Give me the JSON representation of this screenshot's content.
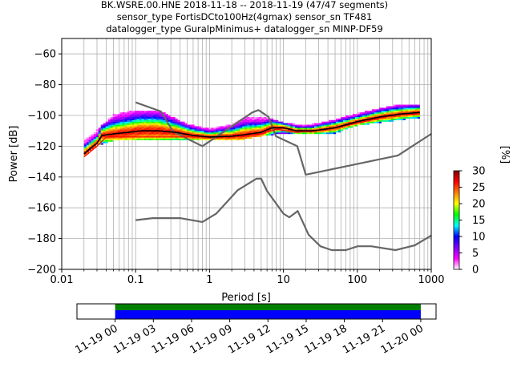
{
  "chart_data": [
    {
      "type": "heatmap",
      "title_lines": [
        "BK.WSRE.00.HNE   2018-11-18 -- 2018-11-19  (47/47 segments)",
        "sensor_type FortisDCto100Hz(4gmax) sensor_sn TF481",
        "datalogger_type GuralpMinimus+ datalogger_sn MINP-DF59"
      ],
      "xlabel": "Period [s]",
      "ylabel": "Power [dB]",
      "x_scale": "log",
      "xlim": [
        0.01,
        1000
      ],
      "ylim": [
        -200,
        -50
      ],
      "x_ticks": [
        0.01,
        0.1,
        1,
        10,
        100,
        1000
      ],
      "x_tick_labels": [
        "0.01",
        "0.1",
        "1",
        "10",
        "100",
        "1000"
      ],
      "y_ticks": [
        -200,
        -180,
        -160,
        -140,
        -120,
        -100,
        -80,
        -60
      ],
      "y_tick_labels": [
        "−200",
        "−180",
        "−160",
        "−140",
        "−120",
        "−100",
        "−80",
        "−60"
      ],
      "grid": true,
      "colorbar": {
        "label": "[%]",
        "range": [
          0,
          30
        ],
        "ticks": [
          0,
          5,
          10,
          15,
          20,
          25,
          30
        ],
        "tick_labels": [
          "0",
          "5",
          "10",
          "15",
          "20",
          "25",
          "30"
        ],
        "colormap": [
          "#ffffff",
          "#ff00ff",
          "#7f00ff",
          "#0000ff",
          "#00ffff",
          "#00ff00",
          "#ffff00",
          "#ff8000",
          "#ff0000",
          "#800000"
        ]
      },
      "reference_curves": {
        "color": "#666666",
        "nhnm": [
          {
            "period": 0.1,
            "db": -91.5
          },
          {
            "period": 0.22,
            "db": -97.4
          },
          {
            "period": 0.32,
            "db": -110.5
          },
          {
            "period": 0.8,
            "db": -120
          },
          {
            "period": 3.8,
            "db": -98
          },
          {
            "period": 4.6,
            "db": -96.5
          },
          {
            "period": 6.3,
            "db": -101
          },
          {
            "period": 7.9,
            "db": -113.5
          },
          {
            "period": 15.4,
            "db": -120
          },
          {
            "period": 20,
            "db": -138.5
          },
          {
            "period": 354.8,
            "db": -126
          },
          {
            "period": 1000,
            "db": -112
          }
        ],
        "nlnm": [
          {
            "period": 0.1,
            "db": -168
          },
          {
            "period": 0.17,
            "db": -166.7
          },
          {
            "period": 0.4,
            "db": -166.7
          },
          {
            "period": 0.8,
            "db": -169.2
          },
          {
            "period": 1.24,
            "db": -163.7
          },
          {
            "period": 2.4,
            "db": -148.6
          },
          {
            "period": 4.3,
            "db": -141.1
          },
          {
            "period": 5,
            "db": -141.1
          },
          {
            "period": 6,
            "db": -149
          },
          {
            "period": 10,
            "db": -163.8
          },
          {
            "period": 12,
            "db": -166.2
          },
          {
            "period": 15.6,
            "db": -162.1
          },
          {
            "period": 21.9,
            "db": -177.5
          },
          {
            "period": 31.6,
            "db": -185
          },
          {
            "period": 45,
            "db": -187.5
          },
          {
            "period": 70,
            "db": -187.5
          },
          {
            "period": 101,
            "db": -185
          },
          {
            "period": 154,
            "db": -185
          },
          {
            "period": 328,
            "db": -187.5
          },
          {
            "period": 600,
            "db": -184.4
          },
          {
            "period": 1000,
            "db": -178
          }
        ]
      },
      "median_curve": {
        "color": "#000000",
        "points": [
          {
            "period": 0.02,
            "db": -125
          },
          {
            "period": 0.025,
            "db": -121
          },
          {
            "period": 0.03,
            "db": -118
          },
          {
            "period": 0.035,
            "db": -113
          },
          {
            "period": 0.05,
            "db": -112
          },
          {
            "period": 0.08,
            "db": -111
          },
          {
            "period": 0.12,
            "db": -110
          },
          {
            "period": 0.2,
            "db": -110
          },
          {
            "period": 0.35,
            "db": -111
          },
          {
            "period": 0.6,
            "db": -113
          },
          {
            "period": 1,
            "db": -114
          },
          {
            "period": 2,
            "db": -113.5
          },
          {
            "period": 3,
            "db": -112.5
          },
          {
            "period": 5,
            "db": -111
          },
          {
            "period": 7,
            "db": -108
          },
          {
            "period": 10,
            "db": -108
          },
          {
            "period": 15,
            "db": -110
          },
          {
            "period": 25,
            "db": -110
          },
          {
            "period": 50,
            "db": -108
          },
          {
            "period": 100,
            "db": -104
          },
          {
            "period": 200,
            "db": -101
          },
          {
            "period": 400,
            "db": -99
          },
          {
            "period": 700,
            "db": -98
          }
        ]
      },
      "mode_curve": {
        "color": "#ff0000",
        "points": [
          {
            "period": 0.02,
            "db": -127
          },
          {
            "period": 0.03,
            "db": -120
          },
          {
            "period": 0.04,
            "db": -114
          },
          {
            "period": 0.1,
            "db": -114
          },
          {
            "period": 0.5,
            "db": -114
          },
          {
            "period": 2,
            "db": -114
          },
          {
            "period": 5,
            "db": -112
          },
          {
            "period": 8,
            "db": -109
          },
          {
            "period": 15,
            "db": -111
          },
          {
            "period": 40,
            "db": -109
          },
          {
            "period": 100,
            "db": -105
          },
          {
            "period": 300,
            "db": -100
          },
          {
            "period": 700,
            "db": -99
          }
        ]
      },
      "spread_bounds": [
        {
          "period": 0.02,
          "low": -126,
          "high": -116
        },
        {
          "period": 0.03,
          "low": -119,
          "high": -110
        },
        {
          "period": 0.05,
          "low": -116,
          "high": -100
        },
        {
          "period": 0.1,
          "low": -116,
          "high": -97
        },
        {
          "period": 0.2,
          "low": -116,
          "high": -97
        },
        {
          "period": 0.5,
          "low": -116,
          "high": -106
        },
        {
          "period": 1,
          "low": -116,
          "high": -109
        },
        {
          "period": 2,
          "low": -116,
          "high": -106
        },
        {
          "period": 3,
          "low": -115,
          "high": -101
        },
        {
          "period": 5,
          "low": -113,
          "high": -101
        },
        {
          "period": 10,
          "low": -111,
          "high": -105
        },
        {
          "period": 20,
          "low": -112,
          "high": -107
        },
        {
          "period": 50,
          "low": -111,
          "high": -103
        },
        {
          "period": 100,
          "low": -106,
          "high": -99
        },
        {
          "period": 300,
          "low": -103,
          "high": -94
        },
        {
          "period": 700,
          "low": -101,
          "high": -93
        }
      ]
    },
    {
      "type": "bar",
      "time_ticks": [
        "11-19 00",
        "11-19 03",
        "11-19 06",
        "11-19 09",
        "11-19 12",
        "11-19 15",
        "11-19 18",
        "11-19 21",
        "11-20 00"
      ],
      "coverage_start_hours": 0,
      "coverage_end_hours": 24,
      "axis_range_hours": [
        -3,
        25.2
      ],
      "bands": [
        {
          "color": "#008000",
          "row": "upper"
        },
        {
          "color": "#0000ff",
          "row": "lower"
        }
      ]
    }
  ]
}
